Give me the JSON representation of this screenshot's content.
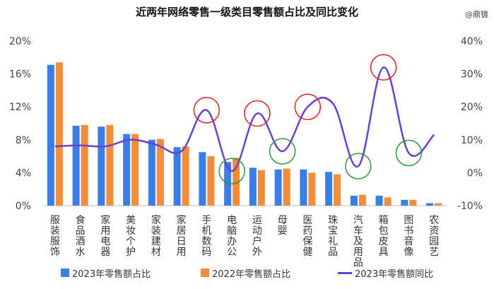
{
  "watermark": "@鼎镀",
  "chart_data": {
    "type": "bar",
    "title": "近两年网络零售一级类目零售额占比及同比变化",
    "categories": [
      "服装服饰",
      "食品酒水",
      "家用电器",
      "美妆个护",
      "家装建材",
      "家居日用",
      "手机数码",
      "电脑办公",
      "运动户外",
      "母婴",
      "医药保健",
      "珠宝礼品",
      "汽车及用品",
      "箱包皮具",
      "图书音像",
      "农资园艺"
    ],
    "series": [
      {
        "name": "2023年零售额占比",
        "axis": "left",
        "type": "bar",
        "color": "#3a7ee8",
        "values": [
          17.1,
          9.7,
          9.6,
          8.7,
          8.0,
          7.1,
          6.5,
          5.3,
          4.6,
          4.4,
          4.4,
          4.1,
          1.2,
          1.2,
          0.7,
          0.3
        ]
      },
      {
        "name": "2022年零售额占比",
        "axis": "left",
        "type": "bar",
        "color": "#f58c3a",
        "values": [
          17.4,
          9.8,
          9.8,
          8.7,
          8.1,
          7.2,
          6.0,
          5.8,
          4.3,
          4.5,
          4.0,
          3.8,
          1.3,
          1.0,
          0.7,
          0.3
        ]
      },
      {
        "name": "2023年零售额同比",
        "axis": "right",
        "type": "line",
        "color": "#6a3fd3",
        "values": [
          8.0,
          8.3,
          8.0,
          10.0,
          8.5,
          6.5,
          19.0,
          0.5,
          18.0,
          6.5,
          20.0,
          21.0,
          2.0,
          32.0,
          6.0,
          11.5
        ]
      }
    ],
    "yticks_left": [
      "0%",
      "4%",
      "8%",
      "12%",
      "16%",
      "20%"
    ],
    "yticks_right": [
      "-10%",
      "0%",
      "10%",
      "20%",
      "30%",
      "40%"
    ],
    "ylim_left": [
      0,
      20
    ],
    "ylim_right": [
      -10,
      40
    ],
    "highlights": [
      {
        "category": "手机数码",
        "color": "#e02020"
      },
      {
        "category": "电脑办公",
        "color": "#2a9a3a"
      },
      {
        "category": "运动户外",
        "color": "#e02020"
      },
      {
        "category": "母婴",
        "color": "#2a9a3a"
      },
      {
        "category": "医药保健",
        "color": "#e02020"
      },
      {
        "category": "汽车及用品",
        "color": "#2a9a3a"
      },
      {
        "category": "箱包皮具",
        "color": "#e02020"
      },
      {
        "category": "图书音像",
        "color": "#2a9a3a"
      }
    ],
    "grid": false,
    "legend_position": "bottom"
  }
}
